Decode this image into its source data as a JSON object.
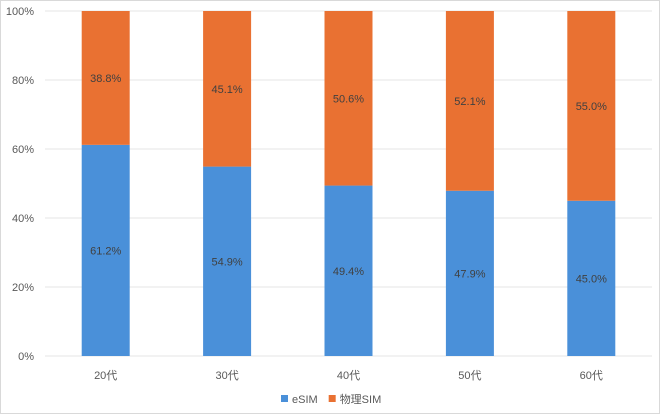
{
  "chart_data": {
    "type": "bar",
    "stacked": true,
    "percent_stacked": true,
    "title": "",
    "xlabel": "",
    "ylabel": "",
    "ylim": [
      0,
      100
    ],
    "yticks": [
      "0%",
      "20%",
      "40%",
      "60%",
      "80%",
      "100%"
    ],
    "grid": true,
    "legend_position": "bottom",
    "categories": [
      "20代",
      "30代",
      "40代",
      "50代",
      "60代"
    ],
    "series": [
      {
        "name": "eSIM",
        "color": "#4A90D9",
        "values": [
          61.2,
          54.9,
          49.4,
          47.9,
          45.0
        ],
        "labels": [
          "61.2%",
          "54.9%",
          "49.4%",
          "47.9%",
          "45.0%"
        ]
      },
      {
        "name": "物理SIM",
        "color": "#E97132",
        "values": [
          38.8,
          45.1,
          50.6,
          52.1,
          55.0
        ],
        "labels": [
          "38.8%",
          "45.1%",
          "50.6%",
          "52.1%",
          "55.0%"
        ]
      }
    ]
  }
}
